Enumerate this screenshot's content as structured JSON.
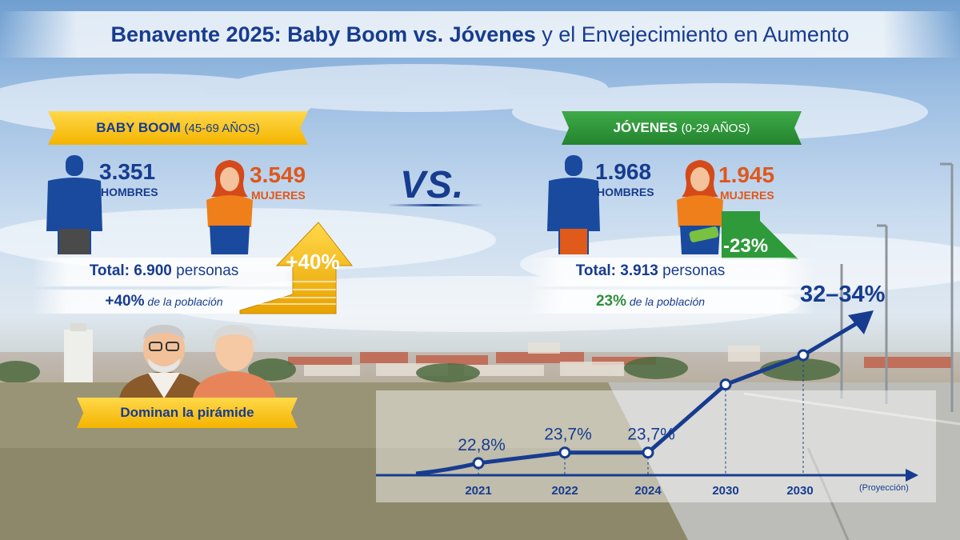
{
  "title": {
    "bold": "Benavente 2025: Baby Boom vs. Jóvenes",
    "rest": "y el Envejecimiento en Aumento"
  },
  "baby_boom": {
    "ribbon_strong": "BABY BOOM",
    "ribbon_range": "(45-69 AÑOS)",
    "men_value": "3.351",
    "men_label": "HOMBRES",
    "women_value": "3.549",
    "women_label": "MUJERES",
    "total_prefix": "Total:",
    "total_value": "6.900",
    "total_unit": "personas",
    "pct_value": "+40%",
    "pct_text": "de la población",
    "arrow_label": "+40%",
    "dominate_label": "Dominan la pirámide"
  },
  "vs_label": "VS.",
  "youth": {
    "ribbon_strong": "JÓVENES",
    "ribbon_range": "(0-29 AÑOS)",
    "men_value": "1.968",
    "men_label": "HOMBRES",
    "women_value": "1.945",
    "women_label": "MUJERES",
    "decline_label": "-23%",
    "total_prefix": "Total:",
    "total_value": "3.913",
    "total_unit": "personas",
    "pct_value": "23%",
    "pct_text": "de la población"
  },
  "colors": {
    "navy": "#173c8f",
    "orange": "#e0571a",
    "green": "#2f8f3a",
    "gold": "#f4b400"
  },
  "chart_data": {
    "type": "line",
    "title": "",
    "xlabel": "",
    "ylabel": "",
    "x": [
      "2021",
      "2022",
      "2024",
      "2030",
      "2030"
    ],
    "x_note": "(Proyección)",
    "series": [
      {
        "values": [
          22.8,
          23.7,
          23.7,
          29.5,
          32.0
        ]
      }
    ],
    "point_labels": [
      "22,8%",
      "23,7%",
      "23,7%",
      "",
      ""
    ],
    "end_label": "32–34%",
    "ylim": [
      20,
      35
    ],
    "grid": false,
    "legend": "none"
  }
}
